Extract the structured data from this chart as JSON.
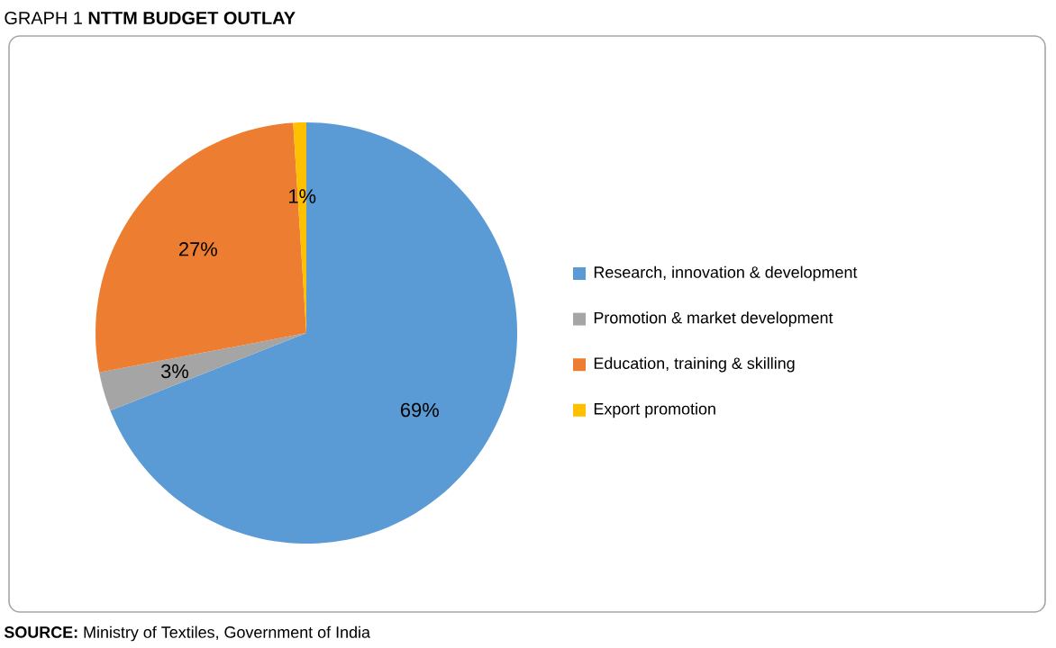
{
  "chart_data": {
    "type": "pie",
    "title": "GRAPH 1 **NTTM BUDGET OUTLAY**",
    "categories": [
      "Research, innovation & development",
      "Promotion & market development",
      "Education, training & skilling",
      "Export promotion"
    ],
    "values": [
      69,
      3,
      27,
      1
    ],
    "value_labels": [
      "69%",
      "3%",
      "27%",
      "1%"
    ],
    "colors": [
      "#5b9bd5",
      "#a5a5a5",
      "#ed7d31",
      "#ffc000"
    ],
    "legend": "right",
    "annotations": [
      "**SOURCE:** Ministry of Textiles, Government of India"
    ]
  }
}
